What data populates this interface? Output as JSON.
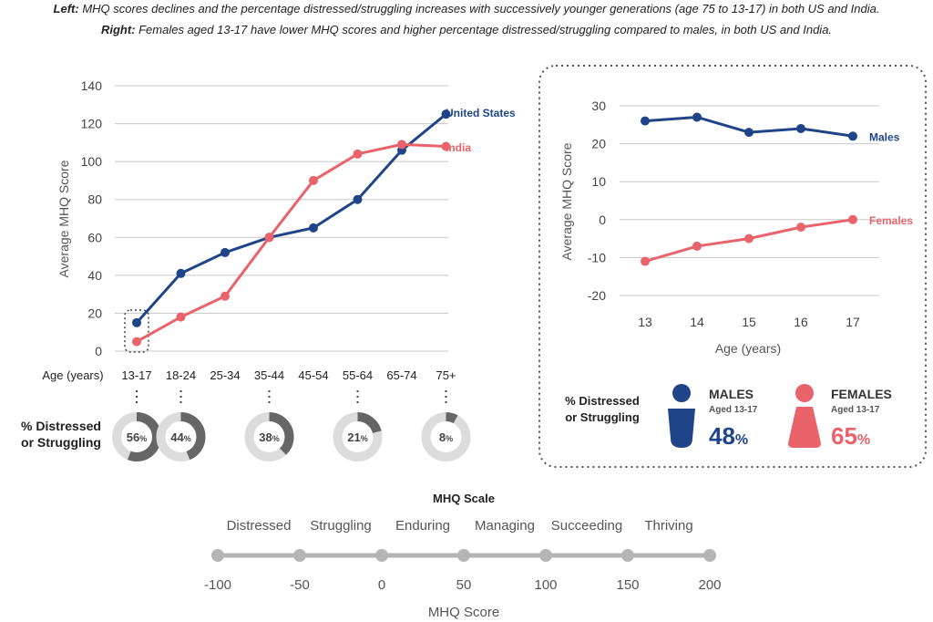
{
  "captions": {
    "left_label": "Left:",
    "left_text": " MHQ scores declines and the percentage distressed/struggling increases with successively younger generations (age 75 to 13-17) in both US and India.",
    "right_label": "Right:",
    "right_text": " Females aged 13-17 have lower MHQ scores and higher percentage distressed/struggling compared to males, in both US and India."
  },
  "colors": {
    "us": "#1f4588",
    "india": "#e8636a",
    "males": "#1f4588",
    "females": "#e8636a",
    "scale": "#b5b5b5",
    "donut_track": "#dcdcdc",
    "donut_fill": "#666666"
  },
  "chart_data": [
    {
      "type": "line",
      "title": "",
      "xlabel": "Age (years)",
      "ylabel": "Average MHQ Score",
      "categories": [
        "13-17",
        "18-24",
        "25-34",
        "35-44",
        "45-54",
        "55-64",
        "65-74",
        "75+"
      ],
      "ylim": [
        0,
        140
      ],
      "yticks": [
        "0",
        "20",
        "40",
        "60",
        "80",
        "100",
        "120",
        "140"
      ],
      "grid": true,
      "series": [
        {
          "name": "United States",
          "values": [
            15,
            41,
            52,
            60,
            65,
            80,
            106,
            125
          ]
        },
        {
          "name": "India",
          "values": [
            5,
            18,
            29,
            60,
            90,
            104,
            109,
            108
          ]
        }
      ]
    },
    {
      "type": "line",
      "title": "",
      "xlabel": "Age (years)",
      "ylabel": "Average MHQ Score",
      "categories": [
        "13",
        "14",
        "15",
        "16",
        "17"
      ],
      "ylim": [
        -20,
        30
      ],
      "yticks": [
        "-20",
        "-10",
        "0",
        "10",
        "20",
        "30"
      ],
      "grid": true,
      "series": [
        {
          "name": "Males",
          "values": [
            26,
            27,
            23,
            24,
            22
          ]
        },
        {
          "name": "Females",
          "values": [
            -11,
            -7,
            -5,
            -2,
            0
          ]
        }
      ]
    }
  ],
  "distressed": {
    "label_line1": "% Distressed",
    "label_line2": "or Struggling",
    "donuts": [
      {
        "category_index": 0,
        "value": 56,
        "text": "56",
        "unit": "%"
      },
      {
        "category_index": 1,
        "value": 44,
        "text": "44",
        "unit": "%"
      },
      {
        "category_index": 3,
        "value": 38,
        "text": "38",
        "unit": "%"
      },
      {
        "category_index": 5,
        "value": 21,
        "text": "21",
        "unit": "%"
      },
      {
        "category_index": 7,
        "value": 8,
        "text": "8",
        "unit": "%"
      }
    ]
  },
  "gender": {
    "label_line1": "% Distressed",
    "label_line2": "or Struggling",
    "males": {
      "title": "MALES",
      "sub": "Aged 13-17",
      "value": "48",
      "unit": "%"
    },
    "females": {
      "title": "FEMALES",
      "sub": "Aged 13-17",
      "value": "65",
      "unit": "%"
    }
  },
  "scale": {
    "title": "MHQ Scale",
    "categories": [
      "Distressed",
      "Struggling",
      "Enduring",
      "Managing",
      "Succeeding",
      "Thriving"
    ],
    "ticks": [
      -100,
      -50,
      0,
      50,
      100,
      150,
      200
    ],
    "tick_labels": [
      "-100",
      "-50",
      "0",
      "50",
      "100",
      "150",
      "200"
    ],
    "xlabel": "MHQ Score"
  }
}
